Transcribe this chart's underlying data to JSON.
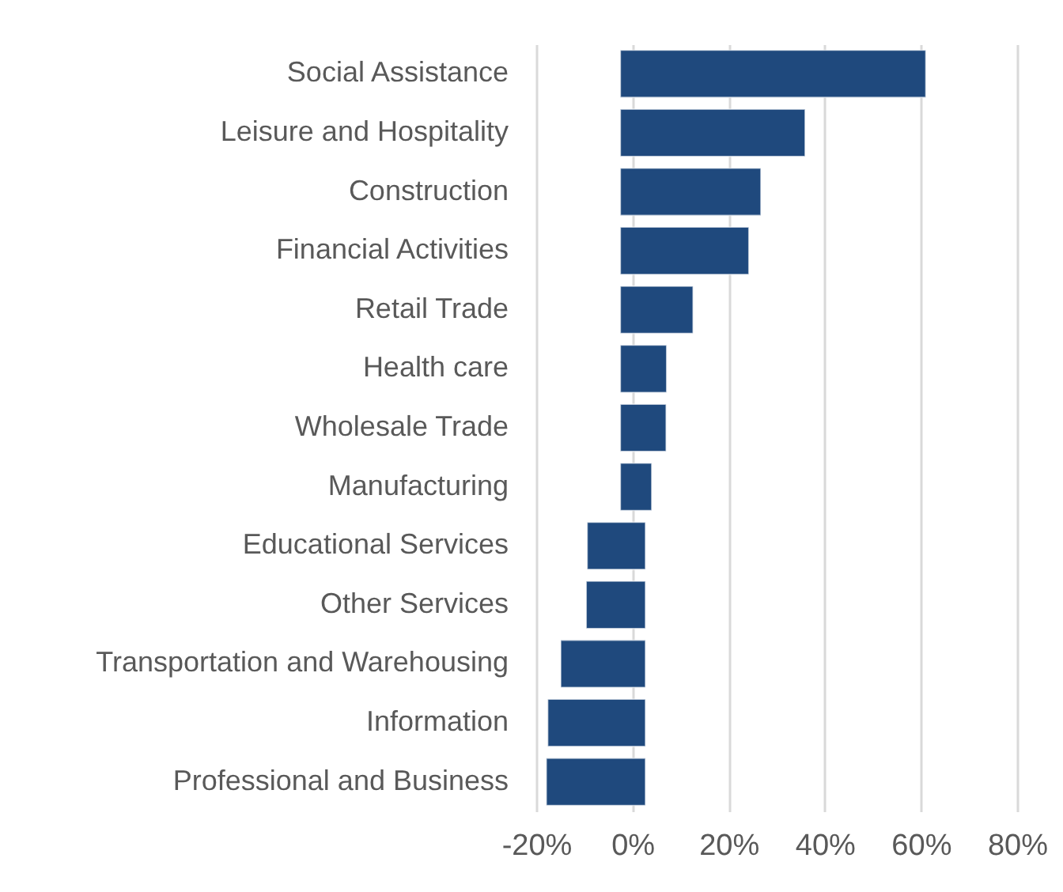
{
  "chart_data": {
    "type": "bar",
    "orientation": "horizontal",
    "categories": [
      "Social Assistance",
      "Leisure and Hospitality",
      "Construction",
      "Financial Activities",
      "Retail Trade",
      "Health care",
      "Wholesale Trade",
      "Manufacturing",
      "Educational Services",
      "Other Services",
      "Transportation and Warehousing",
      "Information",
      "Professional and Business"
    ],
    "base": [
      -2.5,
      -2.5,
      -2.5,
      -2.5,
      -2.5,
      -2.5,
      -2.5,
      -2.5,
      2.7,
      2.7,
      2.7,
      2.7,
      2.7
    ],
    "values": [
      63.5,
      38.4,
      29.2,
      26.7,
      15.1,
      9.6,
      9.5,
      6.5,
      -12.1,
      -12.3,
      -17.6,
      -20.3,
      -20.6
    ],
    "color": "#1f497d",
    "xlim": [
      -20,
      80
    ],
    "xticks": [
      {
        "value": -20,
        "label": "-20%"
      },
      {
        "value": 0,
        "label": "0%"
      },
      {
        "value": 20,
        "label": "20%"
      },
      {
        "value": 40,
        "label": "40%"
      },
      {
        "value": 60,
        "label": "60%"
      },
      {
        "value": 80,
        "label": "80%"
      }
    ],
    "grid": true
  }
}
